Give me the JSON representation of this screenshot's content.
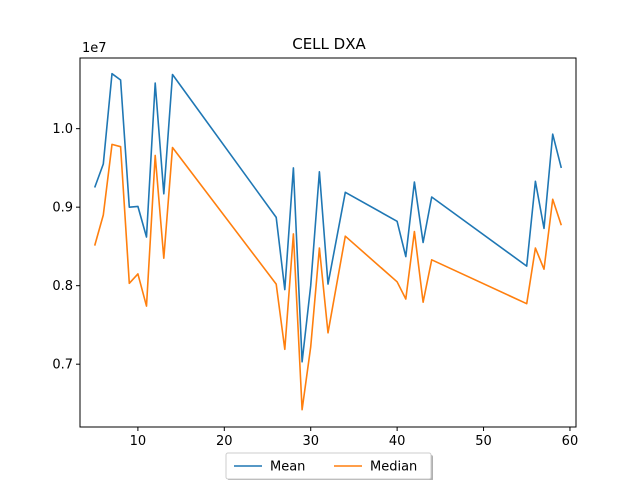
{
  "chart_data": {
    "type": "line",
    "title": "CELL DXA",
    "xlabel": "",
    "ylabel": "",
    "y_offset_label": "1e7",
    "xlim": [
      3.3,
      60.7
    ],
    "ylim": [
      6.2,
      10.9
    ],
    "x_ticks": [
      10,
      20,
      30,
      40,
      50,
      60
    ],
    "x_tick_labels": [
      "10",
      "20",
      "30",
      "40",
      "50",
      "60"
    ],
    "y_ticks": [
      7.0,
      8.0,
      9.0,
      10.0
    ],
    "y_tick_labels": [
      "0.7",
      "0.8",
      "0.9",
      "1.0"
    ],
    "legend_position": "below-center",
    "grid": false,
    "x": [
      5,
      6,
      7,
      8,
      9,
      10,
      11,
      12,
      13,
      14,
      26,
      27,
      28,
      29,
      30,
      31,
      32,
      34,
      40,
      41,
      42,
      43,
      44,
      55,
      56,
      57,
      58,
      59
    ],
    "series": [
      {
        "name": "Mean",
        "color": "#1f77b4",
        "values": [
          9.25,
          9.55,
          10.7,
          10.62,
          9.0,
          9.01,
          8.62,
          10.58,
          9.17,
          10.69,
          8.87,
          7.95,
          9.5,
          7.03,
          8.0,
          9.45,
          8.02,
          9.19,
          8.82,
          8.37,
          9.32,
          8.55,
          9.13,
          8.25,
          9.33,
          8.73,
          9.93,
          9.5
        ]
      },
      {
        "name": "Median",
        "color": "#ff7f0e",
        "values": [
          8.51,
          8.9,
          9.8,
          9.77,
          8.03,
          8.15,
          7.74,
          9.66,
          8.35,
          9.76,
          8.02,
          7.19,
          8.66,
          6.42,
          7.22,
          8.48,
          7.4,
          8.63,
          8.05,
          7.83,
          8.69,
          7.79,
          8.33,
          7.77,
          8.48,
          8.21,
          9.1,
          8.77
        ]
      }
    ]
  }
}
